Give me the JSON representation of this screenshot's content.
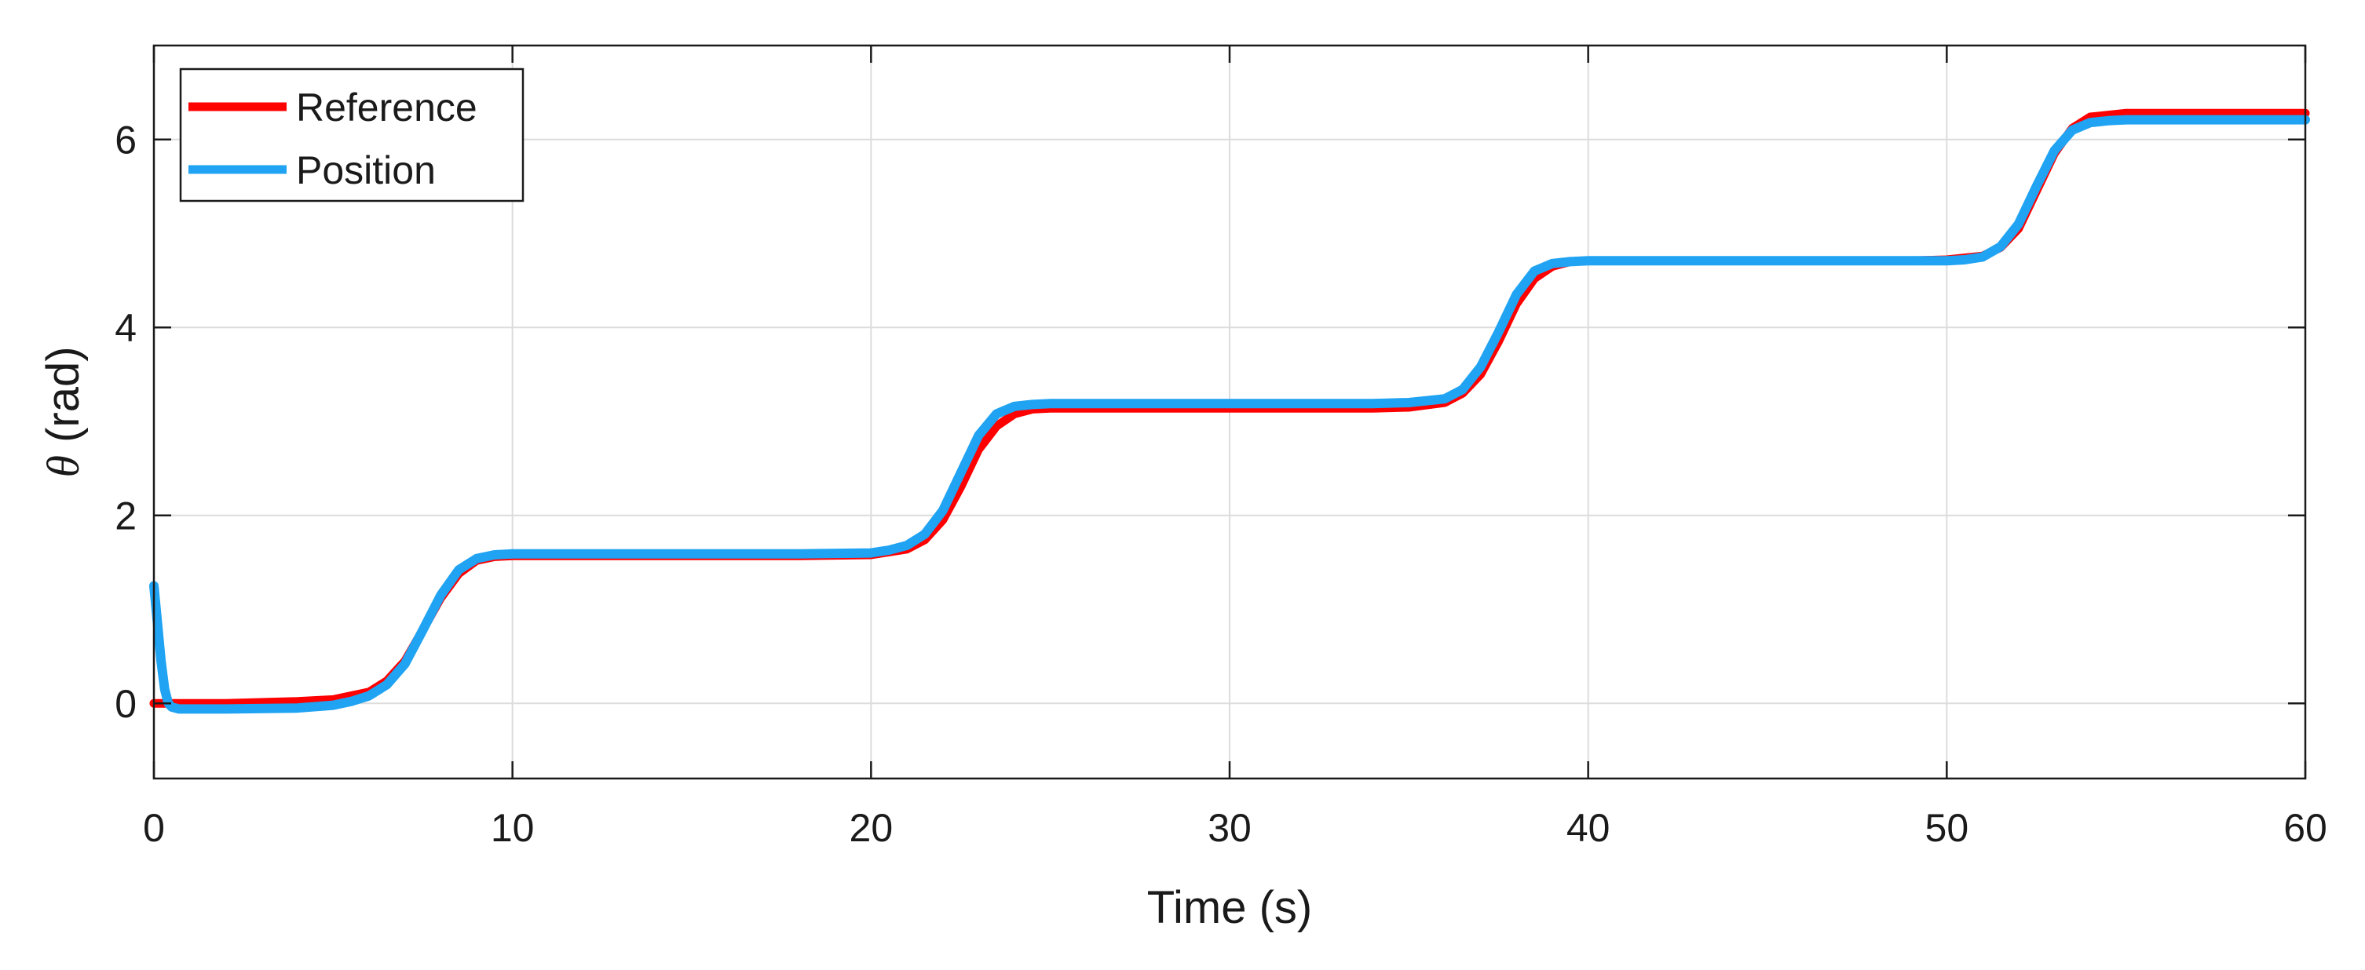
{
  "chart_data": {
    "type": "line",
    "title": "",
    "xlabel": "Time (s)",
    "ylabel_symbol": "θ",
    "ylabel_unit": " (rad)",
    "xlim": [
      0,
      60
    ],
    "ylim": [
      -0.8,
      7.0
    ],
    "xticks": [
      0,
      10,
      20,
      30,
      40,
      50,
      60
    ],
    "xtick_labels": [
      "0",
      "10",
      "20",
      "30",
      "40",
      "50",
      "60"
    ],
    "yticks": [
      0,
      2,
      4,
      6
    ],
    "ytick_labels": [
      "0",
      "2",
      "4",
      "6"
    ],
    "grid": true,
    "legend_position": "top-left",
    "series": [
      {
        "name": "Reference",
        "color": "#ff0000",
        "x": [
          0,
          2,
          4,
          5,
          6,
          6.5,
          7,
          7.5,
          8,
          8.5,
          9,
          9.5,
          10,
          11,
          12,
          14,
          16,
          18,
          20,
          21,
          21.5,
          22,
          22.5,
          23,
          23.5,
          24,
          24.5,
          25,
          26,
          28,
          30,
          32,
          34,
          35,
          36,
          36.5,
          37,
          37.5,
          38,
          38.5,
          39,
          39.5,
          40,
          41,
          42,
          44,
          46,
          48,
          49,
          50,
          51,
          51.5,
          52,
          52.5,
          53,
          53.5,
          54,
          55,
          56,
          58,
          60
        ],
        "y": [
          0.0,
          0.0,
          0.02,
          0.04,
          0.12,
          0.24,
          0.45,
          0.78,
          1.12,
          1.38,
          1.52,
          1.56,
          1.57,
          1.57,
          1.57,
          1.57,
          1.57,
          1.57,
          1.58,
          1.64,
          1.74,
          1.95,
          2.3,
          2.7,
          2.95,
          3.08,
          3.13,
          3.14,
          3.14,
          3.14,
          3.14,
          3.14,
          3.14,
          3.15,
          3.2,
          3.3,
          3.5,
          3.85,
          4.25,
          4.52,
          4.65,
          4.7,
          4.71,
          4.71,
          4.71,
          4.71,
          4.71,
          4.71,
          4.71,
          4.72,
          4.76,
          4.85,
          5.05,
          5.45,
          5.85,
          6.12,
          6.24,
          6.28,
          6.28,
          6.28,
          6.28
        ]
      },
      {
        "name": "Position",
        "color": "#1fa3f2",
        "x": [
          0,
          0.1,
          0.2,
          0.3,
          0.4,
          0.5,
          0.7,
          1.0,
          1.5,
          2,
          4,
          5,
          5.5,
          6,
          6.5,
          7,
          7.5,
          8,
          8.5,
          9,
          9.5,
          10,
          11,
          12,
          14,
          16,
          18,
          20,
          20.5,
          21,
          21.5,
          22,
          22.5,
          23,
          23.5,
          24,
          24.5,
          25,
          26,
          28,
          30,
          32,
          34,
          35,
          36,
          36.5,
          37,
          37.5,
          38,
          38.5,
          39,
          39.5,
          40,
          41,
          42,
          44,
          46,
          48,
          50,
          50.5,
          51,
          51.5,
          52,
          52.5,
          53,
          53.5,
          54,
          54.5,
          55,
          56,
          58,
          60
        ],
        "y": [
          1.25,
          0.85,
          0.45,
          0.15,
          0.0,
          -0.04,
          -0.06,
          -0.06,
          -0.06,
          -0.06,
          -0.05,
          -0.02,
          0.02,
          0.08,
          0.2,
          0.42,
          0.78,
          1.15,
          1.42,
          1.54,
          1.58,
          1.59,
          1.59,
          1.59,
          1.59,
          1.59,
          1.59,
          1.6,
          1.63,
          1.68,
          1.8,
          2.05,
          2.45,
          2.85,
          3.08,
          3.16,
          3.18,
          3.19,
          3.19,
          3.19,
          3.19,
          3.19,
          3.19,
          3.2,
          3.24,
          3.34,
          3.58,
          3.95,
          4.35,
          4.6,
          4.68,
          4.7,
          4.71,
          4.71,
          4.71,
          4.71,
          4.71,
          4.71,
          4.71,
          4.72,
          4.75,
          4.86,
          5.1,
          5.5,
          5.88,
          6.1,
          6.18,
          6.2,
          6.21,
          6.21,
          6.21,
          6.21
        ]
      }
    ]
  }
}
